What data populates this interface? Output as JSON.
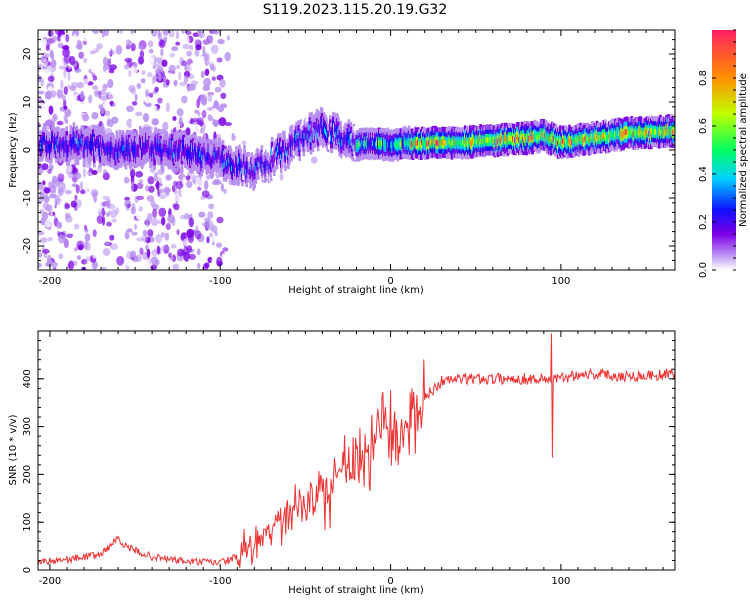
{
  "page": {
    "title": "S119.2023.115.20.19.G32"
  },
  "chart_data": [
    {
      "type": "heatmap",
      "xlabel": "Height of straight line (km)",
      "ylabel": "Frequency (Hz)",
      "xlim": [
        -207,
        167
      ],
      "ylim": [
        -25,
        25
      ],
      "xticks": [
        -200,
        -100,
        0,
        100
      ],
      "yticks": [
        -20,
        -10,
        0,
        10,
        20
      ],
      "grid": false,
      "colorbar": {
        "label": "Normalized spectral amplitude",
        "range": [
          0,
          1
        ],
        "ticks": [
          "0.0",
          "0.2",
          "0.4",
          "0.6",
          "0.8"
        ],
        "tick_values": [
          0.0,
          0.2,
          0.4,
          0.6,
          0.8
        ],
        "colormap": [
          "#ffffff",
          "#b890f0",
          "#7a00e6",
          "#1010ff",
          "#00d0ff",
          "#00ff60",
          "#c0ff00",
          "#ff9000",
          "#ff2060"
        ]
      },
      "ridge": {
        "x": [
          -200,
          -180,
          -160,
          -140,
          -125,
          -110,
          -100,
          -90,
          -80,
          -75,
          -65,
          -60,
          -55,
          -50,
          -40,
          -30,
          -25,
          -20,
          -10,
          0,
          10,
          20,
          40,
          60,
          80,
          90,
          100,
          120,
          140,
          167
        ],
        "freq": [
          1.5,
          1,
          0,
          0.5,
          0,
          -1,
          -2,
          -3,
          -4,
          -3,
          -1,
          0,
          2,
          3,
          4.5,
          3,
          2,
          1,
          1.5,
          1,
          1.5,
          1.5,
          1.5,
          2,
          2.5,
          3,
          1.5,
          2.5,
          3.5,
          4
        ]
      }
    },
    {
      "type": "line",
      "xlabel": "Height of straight line (km)",
      "ylabel": "SNR (10 * v/v)",
      "xlim": [
        -207,
        167
      ],
      "ylim": [
        0,
        500
      ],
      "xticks": [
        -200,
        -100,
        0,
        100
      ],
      "yticks": [
        0,
        100,
        200,
        300,
        400
      ],
      "grid": false,
      "color": "#ee3333",
      "envelope": {
        "x": [
          -207,
          -190,
          -170,
          -160,
          -155,
          -140,
          -120,
          -100,
          -90,
          -80,
          -70,
          -60,
          -50,
          -40,
          -30,
          -20,
          -15,
          -10,
          -5,
          0,
          5,
          10,
          15,
          20,
          30,
          40,
          60,
          80,
          90,
          95,
          100,
          110,
          120,
          140,
          167
        ],
        "y": [
          10,
          15,
          25,
          60,
          40,
          20,
          10,
          8,
          20,
          50,
          90,
          120,
          140,
          170,
          200,
          220,
          230,
          280,
          300,
          290,
          280,
          300,
          330,
          360,
          395,
          400,
          400,
          400,
          400,
          400,
          400,
          410,
          410,
          405,
          410
        ]
      },
      "spike": {
        "x": 94.5,
        "max": 495,
        "min": 235
      }
    }
  ]
}
